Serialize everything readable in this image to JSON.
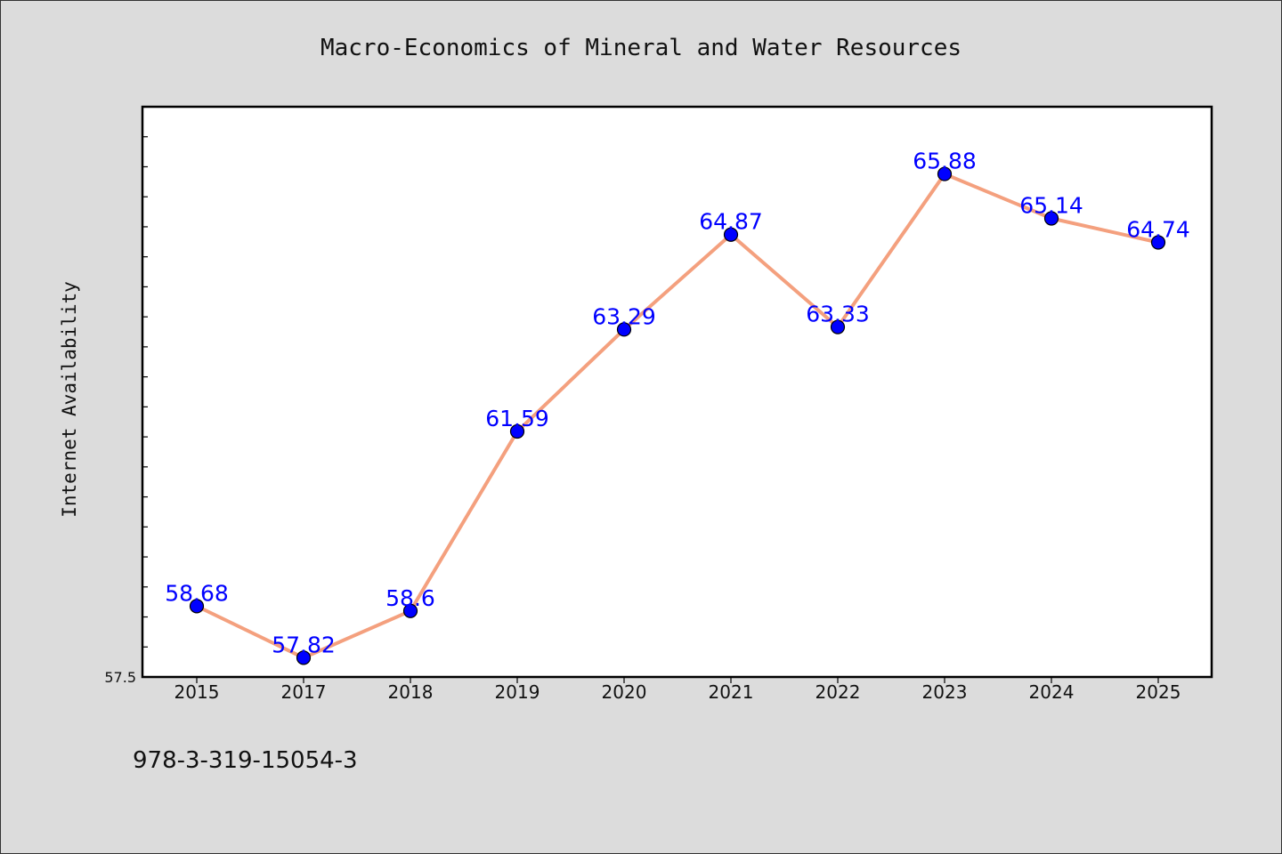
{
  "chart_data": {
    "type": "line",
    "title": "Macro-Economics of Mineral and Water Resources",
    "xlabel": "",
    "ylabel": "Internet Availability",
    "categories": [
      "2015",
      "2017",
      "2018",
      "2019",
      "2020",
      "2021",
      "2022",
      "2023",
      "2024",
      "2025"
    ],
    "series": [
      {
        "values": [
          58.68,
          57.82,
          58.6,
          61.59,
          63.29,
          64.87,
          63.33,
          65.88,
          65.14,
          64.74
        ],
        "labels": [
          "58.68",
          "57.82",
          "58.6",
          "61.59",
          "63.29",
          "64.87",
          "63.33",
          "65.88",
          "65.14",
          "64.74"
        ]
      }
    ],
    "ylim": [
      57.5,
      67.0
    ],
    "yticks_labeled": [
      "57.5"
    ],
    "grid": false,
    "legend": "none",
    "colors": {
      "line": "#f4a07e",
      "marker": "#0000ff",
      "label": "#0000ff",
      "plot_background": "#ffffff",
      "figure_background": "#dcdcdc"
    }
  },
  "footer": {
    "isbn": "978-3-319-15054-3"
  }
}
